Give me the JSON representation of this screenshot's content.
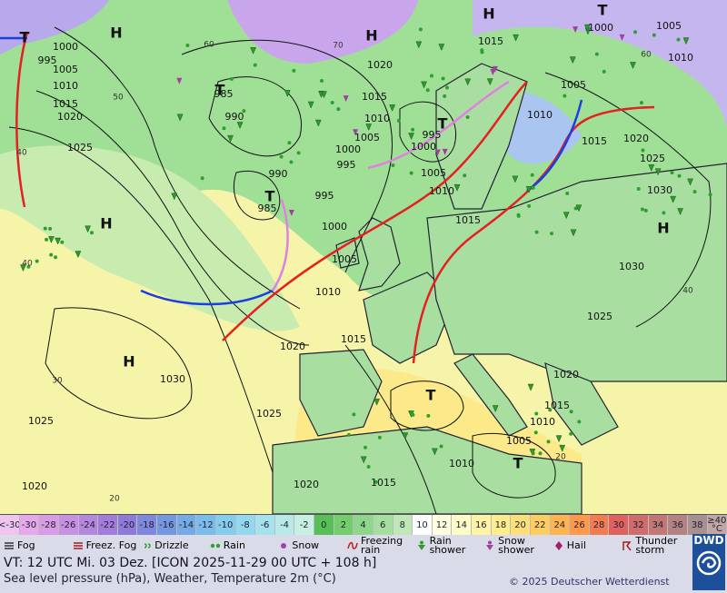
{
  "map": {
    "pressure_centers": [
      "H",
      "H",
      "H",
      "H",
      "H",
      "H",
      "T",
      "T",
      "T",
      "T",
      "T",
      "T",
      "T"
    ],
    "isobar_labels": [
      "1000",
      "995",
      "1005",
      "1010",
      "1015",
      "1020",
      "1025",
      "1030",
      "1025",
      "1020",
      "1025",
      "1020",
      "1015",
      "1010",
      "1005",
      "1000",
      "995",
      "990",
      "985",
      "985",
      "990",
      "1020",
      "1015",
      "1010",
      "1005",
      "1000",
      "995",
      "1015",
      "1000",
      "1005",
      "1010",
      "1005",
      "1010",
      "1015",
      "1020",
      "1025",
      "1030",
      "1030",
      "1025",
      "1020",
      "1015",
      "1010",
      "1005",
      "1010",
      "1015",
      "1020",
      "995",
      "1000",
      "1005",
      "1010",
      "1015"
    ],
    "temperature_labels": [
      "60",
      "70",
      "50",
      "40",
      "40",
      "30",
      "20",
      "60",
      "40",
      "20"
    ]
  },
  "scale": {
    "labels": [
      "<-30",
      "-30",
      "-28",
      "-26",
      "-24",
      "-22",
      "-20",
      "-18",
      "-16",
      "-14",
      "-12",
      "-10",
      "-8",
      "-6",
      "-4",
      "-2",
      "0",
      "2",
      "4",
      "6",
      "8",
      "10",
      "12",
      "14",
      "16",
      "18",
      "20",
      "22",
      "24",
      "26",
      "28",
      "30",
      "32",
      "34",
      "36",
      "38",
      "≥40 °C"
    ],
    "colors": [
      "#f0c4f0",
      "#e6a8ea",
      "#d89ce4",
      "#c890e2",
      "#b686de",
      "#a27cda",
      "#8e7ad8",
      "#7e88dc",
      "#7498e0",
      "#74aae6",
      "#7abcea",
      "#86cced",
      "#94d8ef",
      "#a6e2ee",
      "#b8eae8",
      "#c8f0e2",
      "#56c056",
      "#74cc6c",
      "#8ed68a",
      "#a6dea0",
      "#c0e8b6",
      "#ffffff",
      "#ffffe0",
      "#fdfbc6",
      "#fff4a6",
      "#ffec8c",
      "#ffe078",
      "#ffcc60",
      "#ffb450",
      "#ff9848",
      "#f27c50",
      "#e0625e",
      "#d06c6c",
      "#c27676",
      "#b48282",
      "#a89090",
      "#c0a6a6"
    ]
  },
  "legend": [
    "Fog",
    "Freez. Fog",
    "Drizzle",
    "Rain",
    "Snow",
    "Freezing rain",
    "Rain shower",
    "Snow shower",
    "Hail",
    "Thunder storm"
  ],
  "footer": {
    "valid_time": "VT: 12 UTC Mi.  03 Dez. [ICON 2025-11-29  00 UTC + 108 h]",
    "description": "Sea level pressure (hPa), Weather, Temperature 2m (°C)",
    "copyright": "© 2025 Deutscher Wetterdienst",
    "logo": "DWD"
  }
}
